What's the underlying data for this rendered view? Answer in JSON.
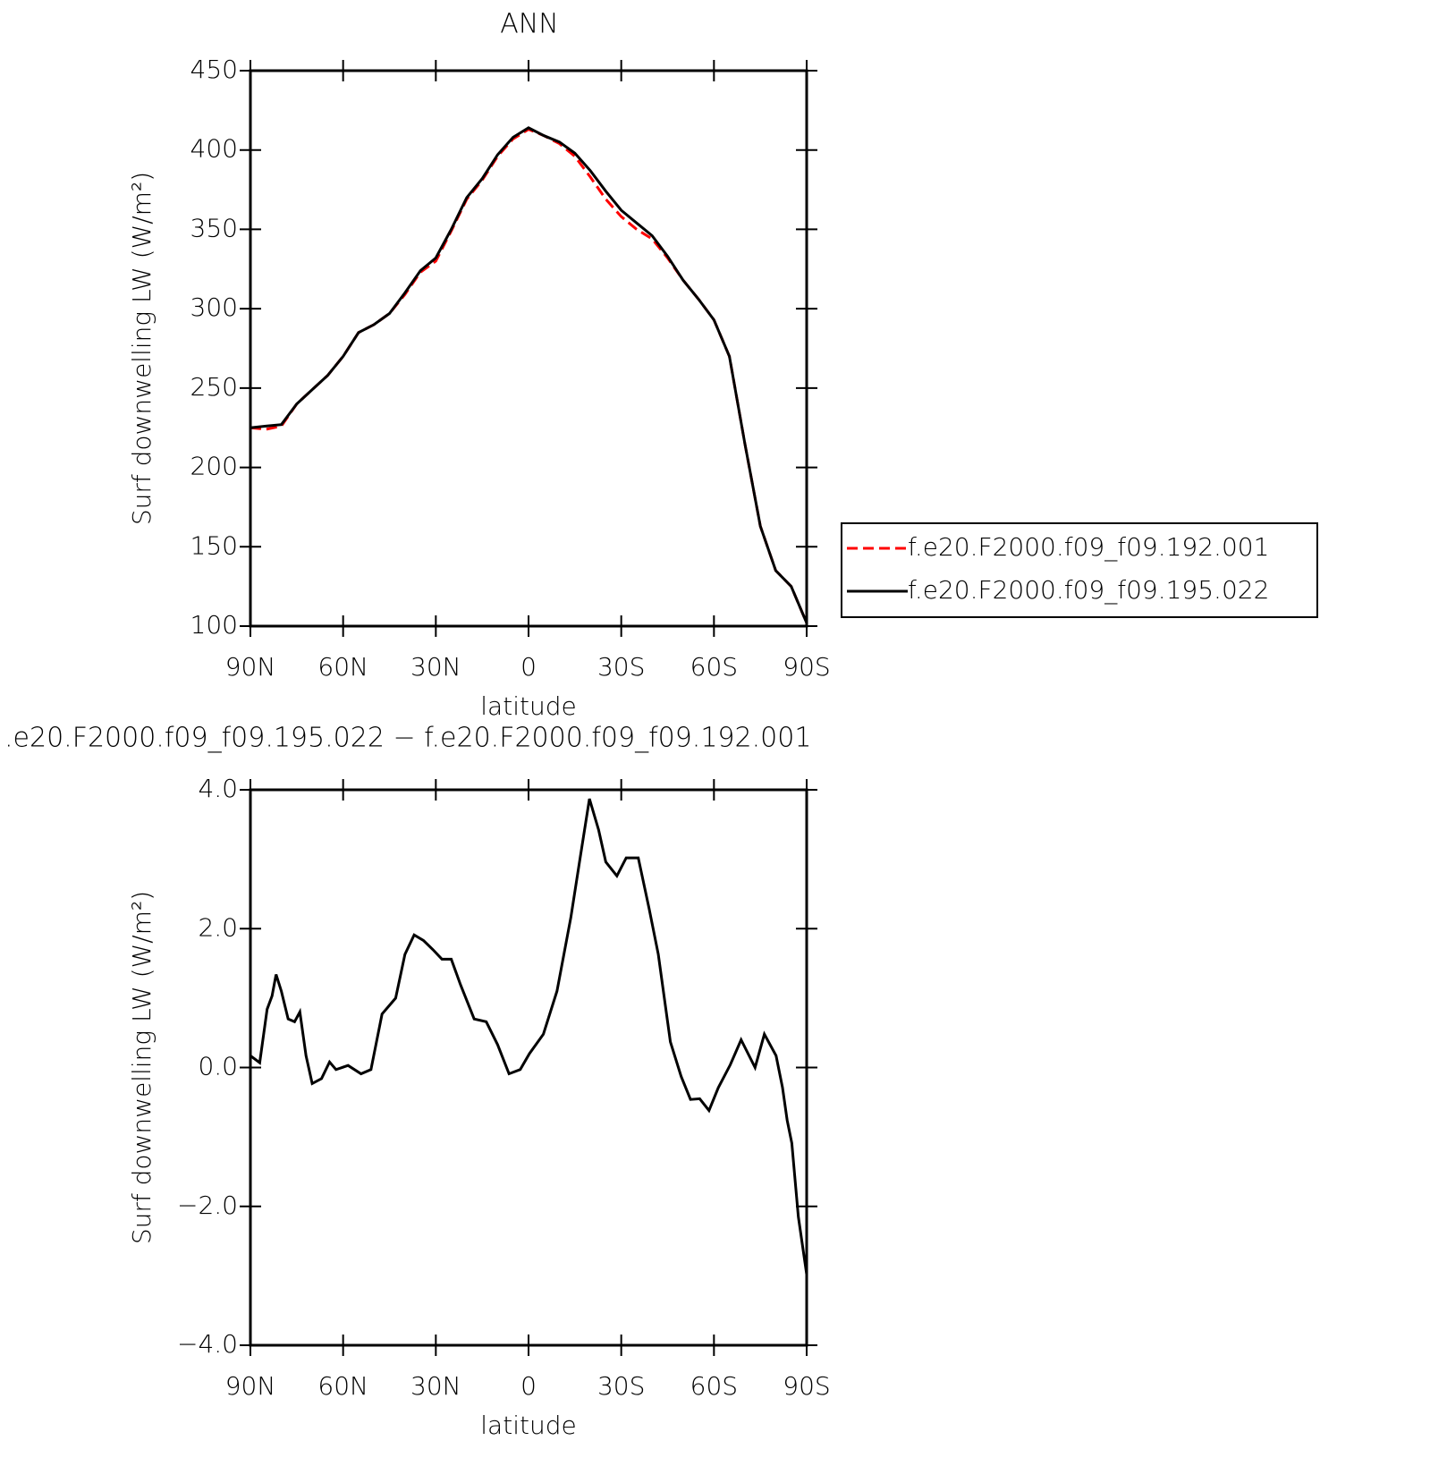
{
  "chart_data": [
    {
      "type": "line",
      "title": "ANN",
      "x_label": "latitude",
      "y_label": "Surf downwelling LW (W/m²)",
      "xlim": [
        90,
        -90
      ],
      "ylim": [
        100,
        450
      ],
      "xticks": [
        {
          "value": 90,
          "label": "90N"
        },
        {
          "value": 60,
          "label": "60N"
        },
        {
          "value": 30,
          "label": "30N"
        },
        0,
        {
          "value": -30,
          "label": "30S"
        },
        {
          "value": -60,
          "label": "60S"
        },
        {
          "value": -90,
          "label": "90S"
        }
      ],
      "yticks": [
        100,
        150,
        200,
        250,
        300,
        350,
        400,
        450
      ],
      "legend": "right",
      "x": [
        90,
        85,
        80,
        75,
        70,
        65,
        60,
        55,
        50,
        45,
        40,
        35,
        30,
        25,
        20,
        15,
        10,
        5,
        0,
        -5,
        -10,
        -15,
        -20,
        -25,
        -30,
        -35,
        -40,
        -45,
        -50,
        -55,
        -60,
        -65,
        -70,
        -75,
        -80,
        -85,
        -90
      ],
      "series": [
        {
          "name": "f.e20.F2000.f09_f09.192.001",
          "color": "#ff0000",
          "dashed": true,
          "values": [
            225,
            224,
            226,
            240,
            249,
            258,
            270,
            285,
            290,
            297,
            309,
            323,
            330,
            349,
            369,
            381,
            396,
            407,
            413,
            409,
            404,
            396,
            383,
            369,
            358,
            350,
            344,
            332,
            318,
            306,
            293,
            270,
            215,
            163,
            135,
            125,
            102
          ]
        },
        {
          "name": "f.e20.F2000.f09_f09.195.022",
          "color": "#000000",
          "dashed": false,
          "values": [
            225,
            226,
            227,
            240,
            249,
            258,
            270,
            285,
            290,
            297,
            310,
            324,
            332,
            350,
            370,
            382,
            397,
            408,
            414,
            409,
            405,
            398,
            387,
            374,
            362,
            354,
            346,
            333,
            318,
            306,
            293,
            270,
            215,
            163,
            135,
            125,
            102
          ]
        }
      ]
    },
    {
      "type": "line",
      "title": ".e20.F2000.f09_f09.195.022 − f.e20.F2000.f09_f09.192.001",
      "x_label": "latitude",
      "y_label": "Surf downwelling LW (W/m²)",
      "xlim": [
        90,
        -90
      ],
      "ylim": [
        -4,
        4
      ],
      "xticks": [
        {
          "value": 90,
          "label": "90N"
        },
        {
          "value": 60,
          "label": "60N"
        },
        {
          "value": 30,
          "label": "30N"
        },
        0,
        {
          "value": -30,
          "label": "30S"
        },
        {
          "value": -60,
          "label": "60S"
        },
        {
          "value": -90,
          "label": "90S"
        }
      ],
      "yticks": [
        {
          "value": -4,
          "label": "−4.0"
        },
        {
          "value": -2,
          "label": "−2.0"
        },
        {
          "value": 0,
          "label": "0.0"
        },
        {
          "value": 2,
          "label": "2.0"
        },
        {
          "value": 4,
          "label": "4.0"
        }
      ],
      "x": [
        90,
        87,
        84.6,
        83,
        81.7,
        80,
        77.8,
        75.7,
        74,
        72,
        70,
        67,
        64.4,
        62.3,
        58.4,
        54.2,
        51,
        47.4,
        43,
        40,
        37,
        34,
        31,
        28,
        25,
        22,
        17.6,
        13.7,
        10,
        6.3,
        2.7,
        -0.3,
        -4.8,
        -9.2,
        -13.7,
        -16.7,
        -19.7,
        -22.7,
        -25,
        -28.6,
        -31.6,
        -35.5,
        -39,
        -42,
        -45.9,
        -49.4,
        -52.4,
        -55.4,
        -58.4,
        -61.4,
        -65.3,
        -68.8,
        -73.3,
        -76.3,
        -80.1,
        -82.2,
        -83.7,
        -85.2,
        -87.3,
        -90
      ],
      "series": [
        {
          "color": "#000000",
          "dashed": false,
          "values": [
            0.17,
            0.07,
            0.84,
            1.03,
            1.34,
            1.1,
            0.7,
            0.66,
            0.8,
            0.17,
            -0.23,
            -0.16,
            0.08,
            -0.03,
            0.03,
            -0.09,
            -0.03,
            0.77,
            1.0,
            1.63,
            1.91,
            1.83,
            1.7,
            1.56,
            1.56,
            1.19,
            0.7,
            0.66,
            0.33,
            -0.09,
            -0.03,
            0.2,
            0.48,
            1.1,
            2.16,
            3.02,
            3.87,
            3.42,
            2.96,
            2.76,
            3.02,
            3.02,
            2.29,
            1.63,
            0.37,
            -0.13,
            -0.46,
            -0.45,
            -0.62,
            -0.29,
            0.04,
            0.4,
            0,
            0.48,
            0.17,
            -0.29,
            -0.76,
            -1.09,
            -2.15,
            -2.98
          ]
        }
      ]
    }
  ]
}
